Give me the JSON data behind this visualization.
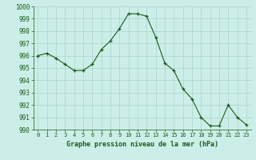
{
  "hours": [
    0,
    1,
    2,
    3,
    4,
    5,
    6,
    7,
    8,
    9,
    10,
    11,
    12,
    13,
    14,
    15,
    16,
    17,
    18,
    19,
    20,
    21,
    22,
    23
  ],
  "pressure": [
    996.0,
    996.2,
    995.8,
    995.3,
    994.8,
    994.8,
    995.3,
    996.5,
    997.2,
    998.2,
    999.4,
    999.4,
    999.2,
    997.5,
    995.4,
    994.8,
    993.3,
    992.5,
    991.0,
    990.3,
    990.3,
    992.0,
    991.0,
    990.4
  ],
  "xlabel": "Graphe pression niveau de la mer (hPa)",
  "ylim": [
    990,
    1000
  ],
  "yticks": [
    990,
    991,
    992,
    993,
    994,
    995,
    996,
    997,
    998,
    999,
    1000
  ],
  "line_color": "#1a5c1a",
  "marker_color": "#1a5c1a",
  "bg_color": "#cceee8",
  "grid_color": "#aad4cc",
  "tick_label_color": "#1a5c1a",
  "xlabel_color": "#1a5c1a",
  "fig_bg": "#cceee8"
}
